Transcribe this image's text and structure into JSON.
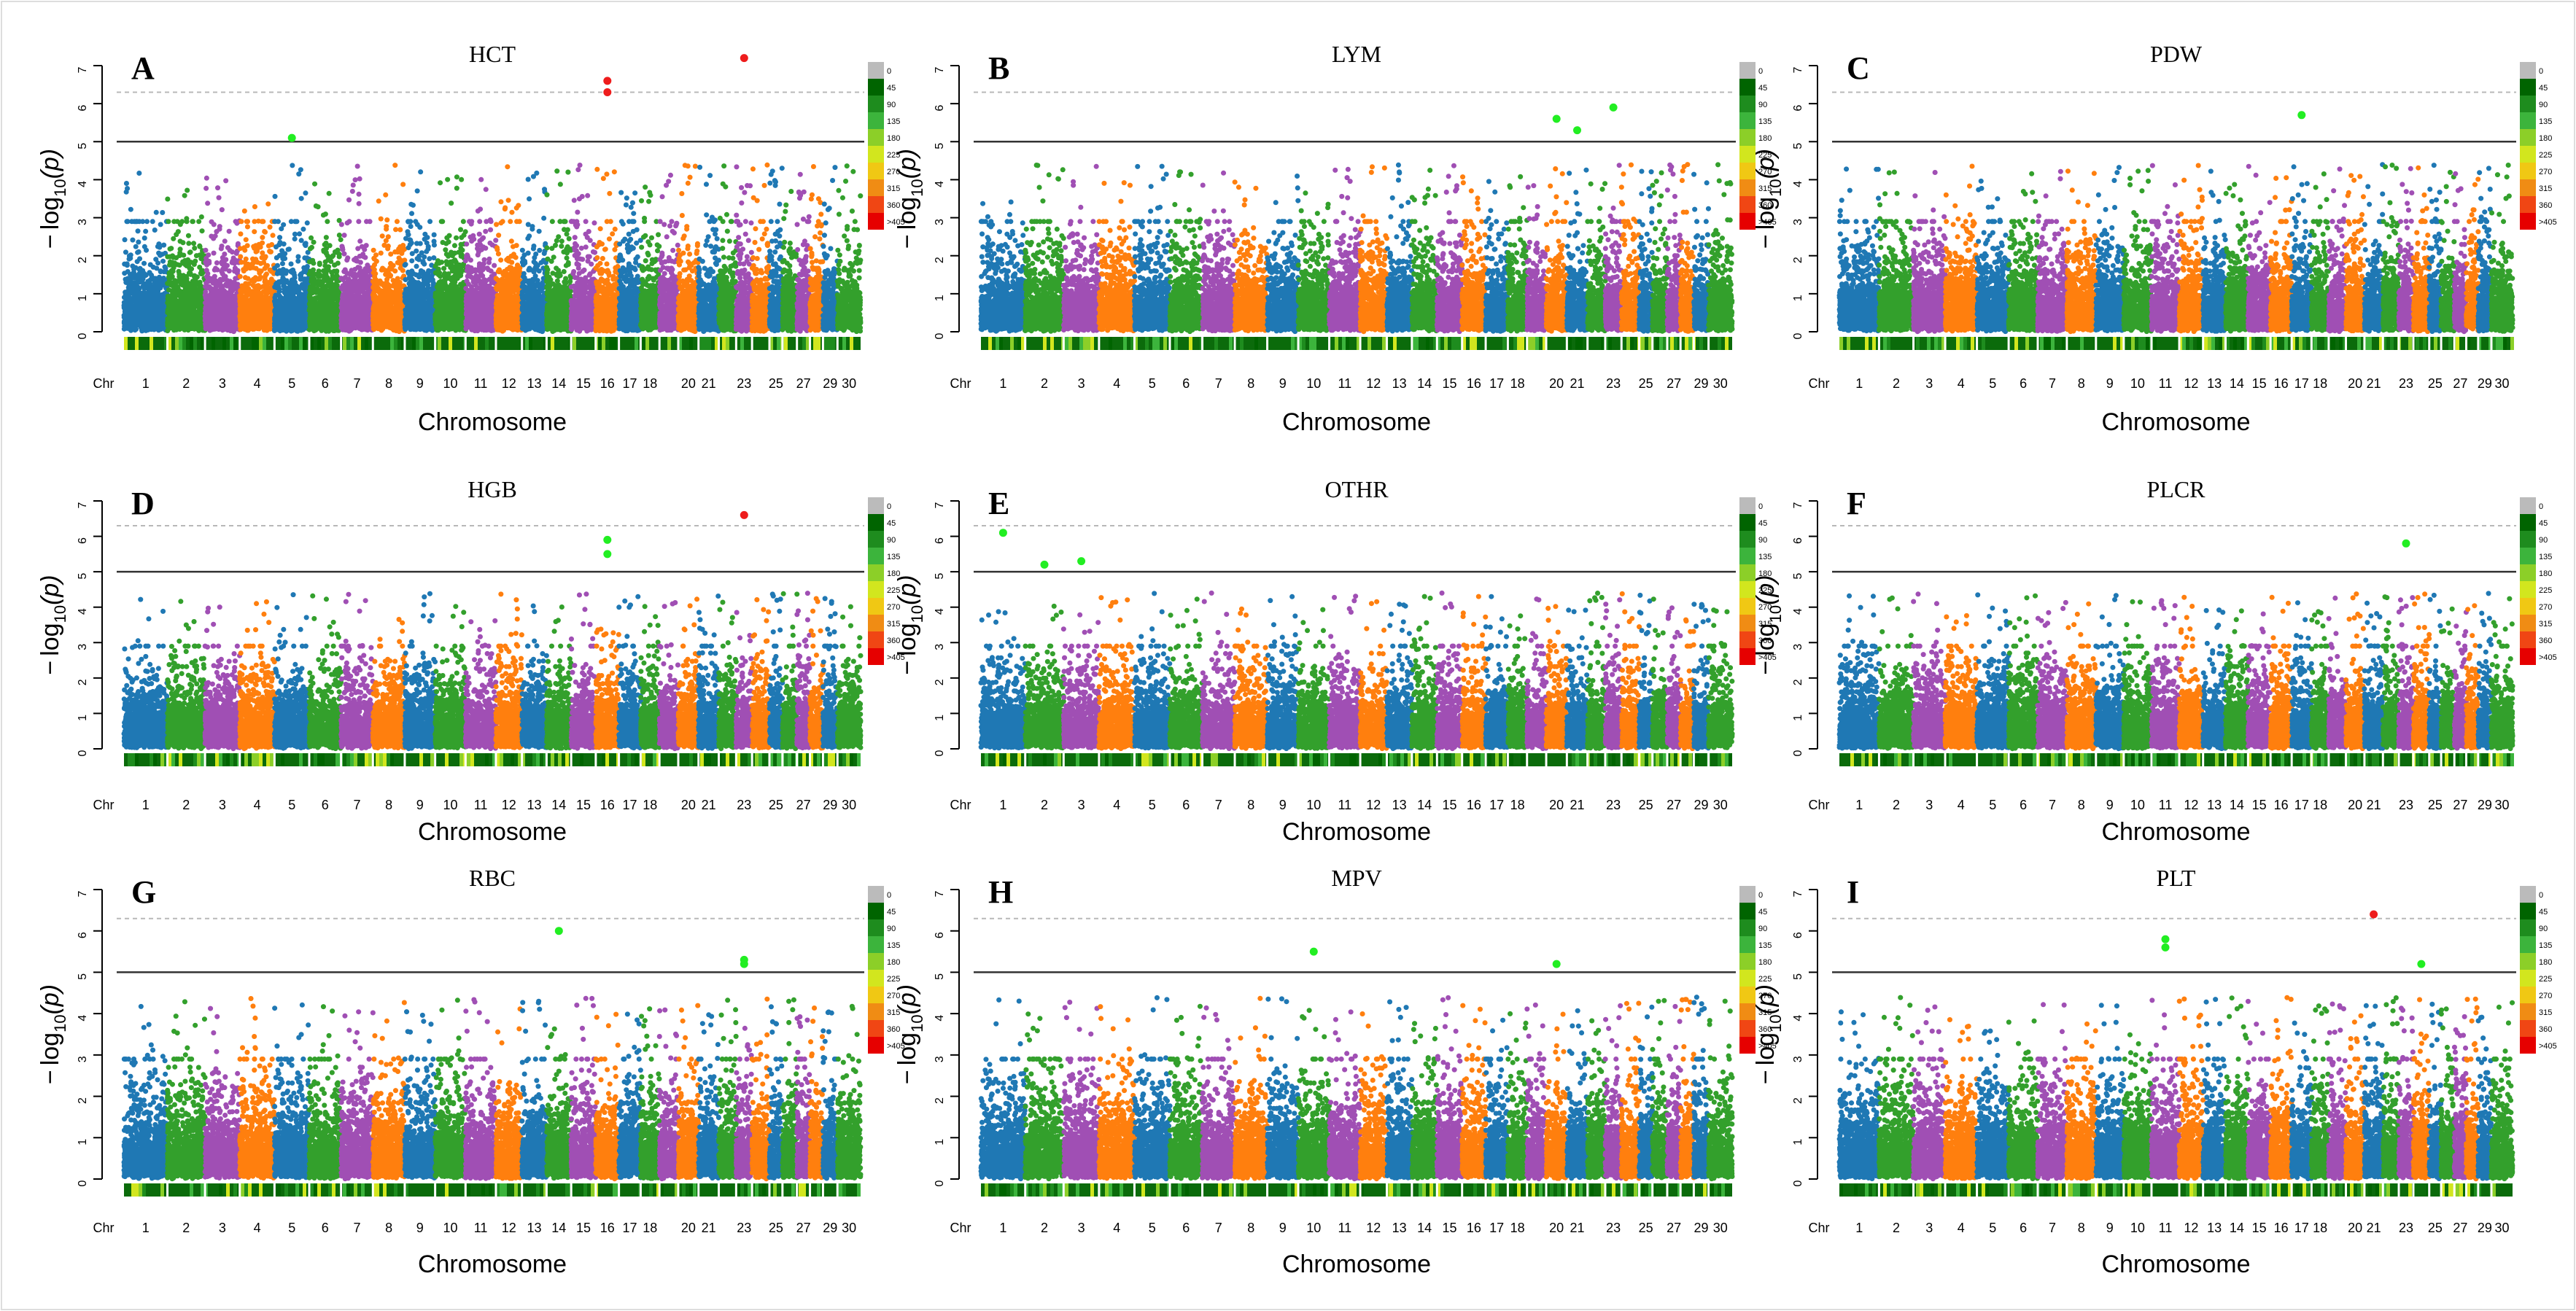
{
  "figure": {
    "chromosomes": [
      "1",
      "2",
      "3",
      "4",
      "5",
      "6",
      "7",
      "8",
      "9",
      "10",
      "11",
      "12",
      "13",
      "14",
      "15",
      "16",
      "17",
      "18",
      "19",
      "20",
      "21",
      "22",
      "23",
      "24",
      "25",
      "26",
      "27",
      "28",
      "29",
      "30"
    ],
    "chr_axis_labels": [
      "1",
      "2",
      "3",
      "4",
      "5",
      "6",
      "7",
      "8",
      "9",
      "10",
      "11",
      "12",
      "13",
      "14",
      "15",
      "16",
      "17",
      "18",
      "20",
      "21",
      "23",
      "25",
      "27",
      "29",
      "30"
    ],
    "chr_prefix": "Chr",
    "xlabel": "Chromosome",
    "ylabel": "−log10(p)",
    "ylabel_parts": {
      "minus": "−",
      "log": "log",
      "sub": "10",
      "arg": "(p)"
    },
    "yticks": [
      "0",
      "1",
      "2",
      "3",
      "4",
      "5",
      "6",
      "7"
    ],
    "ylim": [
      0,
      7
    ],
    "suggestive_threshold": 5,
    "genomewide_threshold": 6.3,
    "series_colors": [
      "#1f78b4",
      "#33a02c",
      "#a04fb4",
      "#ff7f0e"
    ],
    "highlight_colors": {
      "green": "#22ee22",
      "red": "#ee1c1c"
    },
    "density_legend": {
      "labels": [
        "0",
        "45",
        "90",
        "135",
        "180",
        "225",
        "270",
        "315",
        "360",
        ">405"
      ],
      "colors": [
        "#bbbbbb",
        "#006400",
        "#1e8c1e",
        "#3cb43c",
        "#8ccf28",
        "#d2e61e",
        "#f0c814",
        "#f08c14",
        "#f04614",
        "#e60000"
      ]
    }
  },
  "chart_data": [
    {
      "type": "scatter",
      "panel": "A",
      "title": "HCT",
      "ylim": [
        0,
        7
      ],
      "highlights": [
        {
          "chr": "5",
          "value": 5.1,
          "color": "green"
        },
        {
          "chr": "16",
          "value": 6.6,
          "color": "red"
        },
        {
          "chr": "16",
          "value": 6.3,
          "color": "red"
        },
        {
          "chr": "23",
          "value": 7.2,
          "color": "red"
        }
      ]
    },
    {
      "type": "scatter",
      "panel": "B",
      "title": "LYM",
      "ylim": [
        0,
        7
      ],
      "highlights": [
        {
          "chr": "20",
          "value": 5.6,
          "color": "green"
        },
        {
          "chr": "21",
          "value": 5.3,
          "color": "green"
        },
        {
          "chr": "23",
          "value": 5.9,
          "color": "green"
        }
      ]
    },
    {
      "type": "scatter",
      "panel": "C",
      "title": "PDW",
      "ylim": [
        0,
        7
      ],
      "highlights": [
        {
          "chr": "17",
          "value": 5.7,
          "color": "green"
        }
      ]
    },
    {
      "type": "scatter",
      "panel": "D",
      "title": "HGB",
      "ylim": [
        0,
        7
      ],
      "highlights": [
        {
          "chr": "16",
          "value": 5.9,
          "color": "green"
        },
        {
          "chr": "16",
          "value": 5.5,
          "color": "green"
        },
        {
          "chr": "23",
          "value": 6.6,
          "color": "red"
        }
      ]
    },
    {
      "type": "scatter",
      "panel": "E",
      "title": "OTHR",
      "ylim": [
        0,
        7
      ],
      "highlights": [
        {
          "chr": "1",
          "value": 6.1,
          "color": "green"
        },
        {
          "chr": "2",
          "value": 5.2,
          "color": "green"
        },
        {
          "chr": "3",
          "value": 5.3,
          "color": "green"
        }
      ]
    },
    {
      "type": "scatter",
      "panel": "F",
      "title": "PLCR",
      "ylim": [
        0,
        7
      ],
      "highlights": [
        {
          "chr": "23",
          "value": 5.8,
          "color": "green"
        }
      ]
    },
    {
      "type": "scatter",
      "panel": "G",
      "title": "RBC",
      "ylim": [
        0,
        7
      ],
      "highlights": [
        {
          "chr": "14",
          "value": 6.0,
          "color": "green"
        },
        {
          "chr": "23",
          "value": 5.2,
          "color": "green"
        },
        {
          "chr": "23",
          "value": 5.3,
          "color": "green"
        }
      ]
    },
    {
      "type": "scatter",
      "panel": "H",
      "title": "MPV",
      "ylim": [
        0,
        7
      ],
      "highlights": [
        {
          "chr": "10",
          "value": 5.5,
          "color": "green"
        },
        {
          "chr": "20",
          "value": 5.2,
          "color": "green"
        }
      ]
    },
    {
      "type": "scatter",
      "panel": "I",
      "title": "PLT",
      "ylim": [
        0,
        7
      ],
      "highlights": [
        {
          "chr": "11",
          "value": 5.8,
          "color": "green"
        },
        {
          "chr": "11",
          "value": 5.6,
          "color": "green"
        },
        {
          "chr": "21",
          "value": 6.4,
          "color": "red"
        },
        {
          "chr": "24",
          "value": 5.2,
          "color": "green"
        }
      ]
    }
  ]
}
